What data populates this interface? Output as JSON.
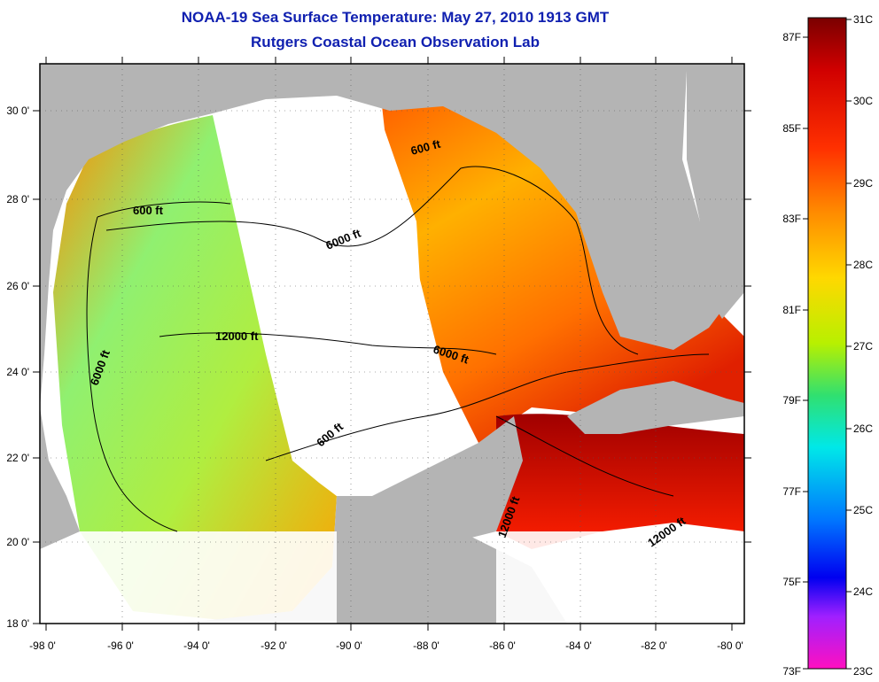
{
  "map": {
    "title": "NOAA-19 Sea Surface Temperature:  May 27, 2010 1913 GMT",
    "subtitle": "Rutgers Coastal Ocean Observation Lab",
    "lat_labels": [
      "30 0'",
      "28 0'",
      "26 0'",
      "24 0'",
      "22 0'",
      "20 0'",
      "18 0'"
    ],
    "lon_labels": [
      "-98 0'",
      "-96 0'",
      "-94 0'",
      "-92 0'",
      "-90 0'",
      "-88 0'",
      "-86 0'",
      "-84 0'",
      "-82 0'",
      "-80 0'"
    ],
    "contour_labels": [
      "600 ft",
      "6000 ft",
      "600 ft",
      "12000 ft",
      "6000 ft",
      "6000 ft",
      "600 ft",
      "12000 ft",
      "12000 ft"
    ],
    "colors": {
      "land": "#b4b4b4",
      "cloud": "#ffffff",
      "title": "#1020b0"
    }
  },
  "colorbar": {
    "celsius": [
      "31C",
      "30C",
      "29C",
      "28C",
      "27C",
      "26C",
      "25C",
      "24C",
      "23C"
    ],
    "fahrenheit": [
      "87F",
      "85F",
      "83F",
      "81F",
      "79F",
      "77F",
      "75F",
      "73F"
    ]
  }
}
